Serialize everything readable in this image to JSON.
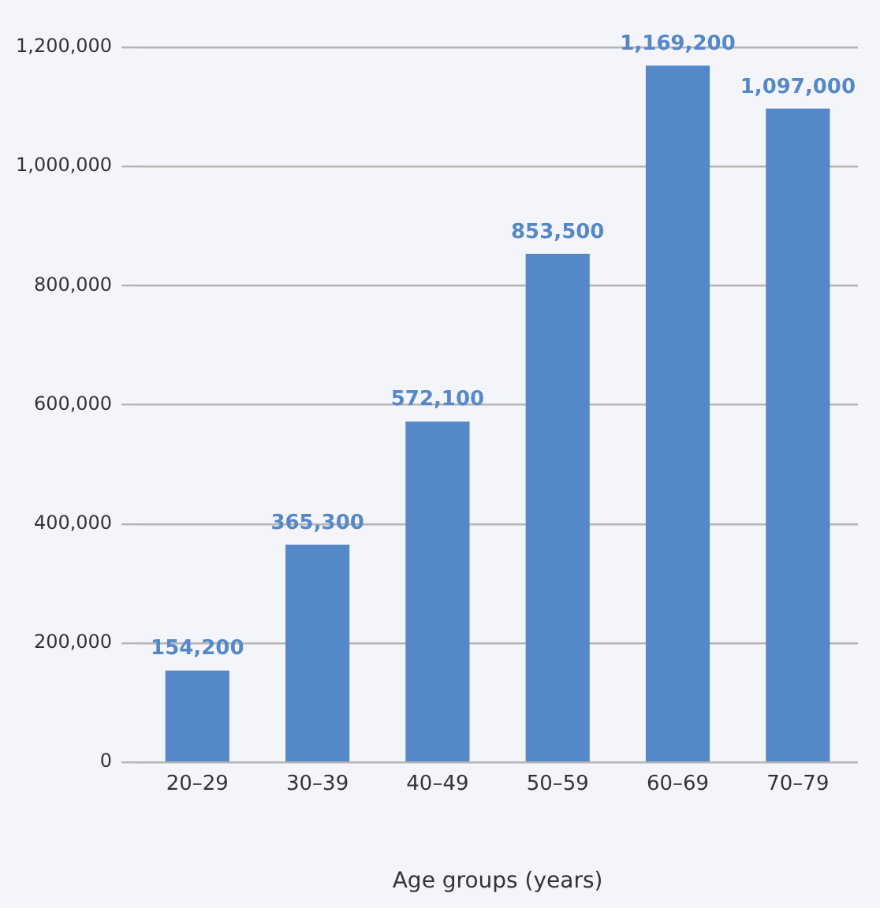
{
  "chart_data": {
    "type": "bar",
    "xlabel": "Age groups (years)",
    "categories": [
      "20–29",
      "30–39",
      "40–49",
      "50–59",
      "60–69",
      "70–79"
    ],
    "values": [
      154200,
      365300,
      572100,
      853500,
      1169200,
      1097000
    ],
    "value_labels": [
      "154,200",
      "365,300",
      "572,100",
      "853,500",
      "1,169,200",
      "1,097,000"
    ],
    "color": "#5588c8",
    "ylim": [
      0,
      1200000
    ],
    "yticks": [
      0,
      {
        "value": 200000,
        "label": "200,000"
      },
      {
        "value": 400000,
        "label": "400,000"
      },
      {
        "value": 600000,
        "label": "600,000"
      },
      {
        "value": 800000,
        "label": "800,000"
      },
      {
        "value": 1000000,
        "label": "1,000,000"
      },
      {
        "value": 1200000,
        "label": "1,200,000"
      }
    ],
    "grid": "y"
  }
}
